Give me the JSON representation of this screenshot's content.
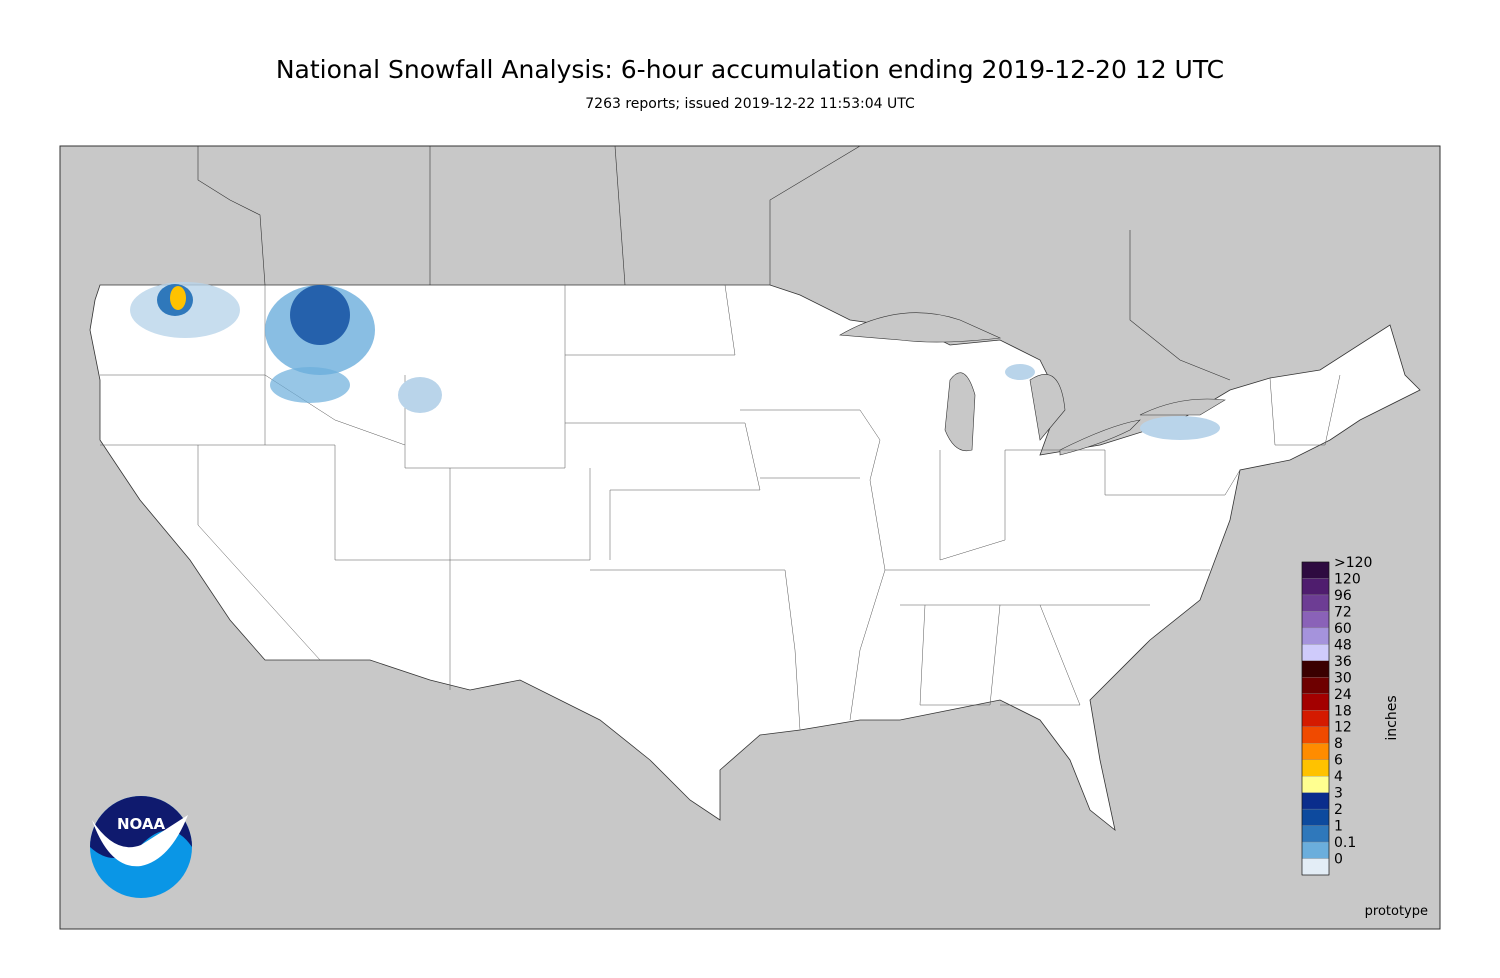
{
  "title": "National Snowfall Analysis: 6-hour accumulation ending 2019-12-20 12 UTC",
  "subtitle": "7263 reports; issued 2019-12-22 11:53:04 UTC",
  "logo": "NOAA",
  "note": "prototype",
  "legend": {
    "unit": "inches",
    "entries": [
      {
        "label": ">120",
        "color": "#2e0b40"
      },
      {
        "label": "120",
        "color": "#4f1d6e"
      },
      {
        "label": "96",
        "color": "#6d3d94"
      },
      {
        "label": "72",
        "color": "#8a62b8"
      },
      {
        "label": "60",
        "color": "#a593dc"
      },
      {
        "label": "48",
        "color": "#cfcbfb"
      },
      {
        "label": "36",
        "color": "#3a0000"
      },
      {
        "label": "30",
        "color": "#6e0000"
      },
      {
        "label": "24",
        "color": "#a30000"
      },
      {
        "label": "18",
        "color": "#d41a00"
      },
      {
        "label": "12",
        "color": "#f04a00"
      },
      {
        "label": "8",
        "color": "#ff8c00"
      },
      {
        "label": "6",
        "color": "#ffc200"
      },
      {
        "label": "4",
        "color": "#ffff90"
      },
      {
        "label": "3",
        "color": "#0a2d8c"
      },
      {
        "label": "2",
        "color": "#0d4a9e"
      },
      {
        "label": "1",
        "color": "#2f78bb"
      },
      {
        "label": "0.1",
        "color": "#6baedc"
      },
      {
        "label": "0",
        "color": "#e3edf6"
      }
    ]
  }
}
